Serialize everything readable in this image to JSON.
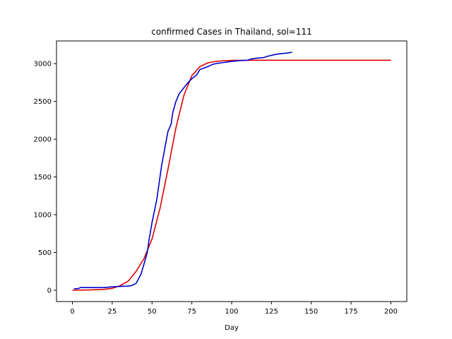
{
  "chart_data": {
    "type": "line",
    "title": "confirmed Cases in Thailand, sol=111",
    "xlabel": "Day",
    "ylabel": "",
    "xlim": [
      -10,
      210
    ],
    "ylim": [
      -150,
      3300
    ],
    "x_ticks": [
      0,
      25,
      50,
      75,
      100,
      125,
      150,
      175,
      200
    ],
    "y_ticks": [
      0,
      500,
      1000,
      1500,
      2000,
      2500,
      3000
    ],
    "grid": false,
    "series": [
      {
        "color": "#dd0000",
        "x": [
          0,
          10,
          20,
          25,
          30,
          35,
          40,
          45,
          50,
          55,
          60,
          65,
          70,
          75,
          80,
          85,
          90,
          95,
          100,
          110,
          120,
          140,
          160,
          180,
          200
        ],
        "y": [
          0,
          3,
          12,
          25,
          60,
          120,
          250,
          420,
          680,
          1080,
          1600,
          2150,
          2580,
          2840,
          2960,
          3010,
          3030,
          3038,
          3042,
          3045,
          3045,
          3045,
          3045,
          3045,
          3045
        ]
      },
      {
        "color": "#0000cc",
        "x": [
          1,
          3,
          4,
          5,
          10,
          15,
          20,
          25,
          30,
          35,
          37,
          40,
          43,
          45,
          47,
          48,
          50,
          53,
          56,
          60,
          62,
          63,
          65,
          67,
          70,
          73,
          75,
          78,
          80,
          81,
          85,
          88,
          90,
          95,
          100,
          105,
          110,
          112,
          115,
          120,
          123,
          127,
          130,
          135,
          138
        ],
        "y": [
          20,
          20,
          25,
          35,
          35,
          35,
          35,
          45,
          50,
          55,
          60,
          90,
          210,
          350,
          500,
          650,
          900,
          1200,
          1650,
          2100,
          2200,
          2350,
          2500,
          2600,
          2680,
          2760,
          2800,
          2850,
          2920,
          2930,
          2960,
          2990,
          3000,
          3015,
          3030,
          3040,
          3045,
          3060,
          3070,
          3080,
          3100,
          3120,
          3130,
          3140,
          3150
        ]
      }
    ]
  }
}
